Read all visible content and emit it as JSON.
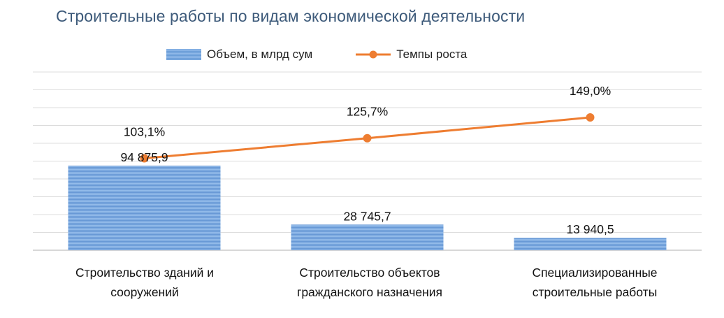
{
  "chart_data": {
    "type": "bar",
    "title": "Строительные работы по видам экономической деятельности",
    "categories": [
      [
        "Строительство зданий и",
        "сооружений"
      ],
      [
        "Строительство объектов",
        "гражданского назначения"
      ],
      [
        "Специализированные",
        "строительные работы"
      ]
    ],
    "series": [
      {
        "name": "Объем, в млрд сум",
        "kind": "bar",
        "values": [
          94875.9,
          28745.7,
          13940.5
        ],
        "labels": [
          "94 875,9",
          "28 745,7",
          "13 940,5"
        ],
        "color": "#7aaae0"
      },
      {
        "name": "Темпы роста",
        "kind": "line",
        "values": [
          103.1,
          125.7,
          149.0
        ],
        "labels": [
          "103,1%",
          "125,7%",
          "149,0%"
        ],
        "color": "#ee7d31"
      }
    ],
    "ylim_bar": [
      0,
      200000
    ],
    "ylim_line": [
      0,
      200
    ],
    "grid": true,
    "legend_position": "top"
  }
}
